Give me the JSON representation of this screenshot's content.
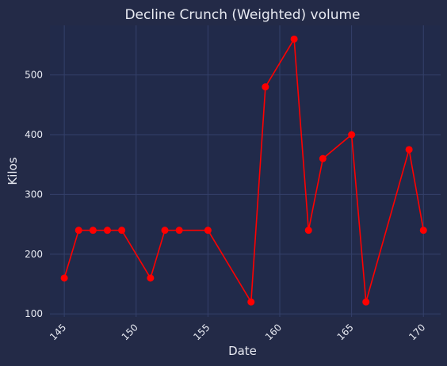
{
  "chart_data": {
    "type": "line",
    "title": "Decline Crunch (Weighted) volume",
    "xlabel": "Date",
    "ylabel": "Kilos",
    "xlim": [
      144,
      171.2
    ],
    "ylim": [
      95,
      583
    ],
    "xticks": [
      145,
      150,
      155,
      160,
      165,
      170
    ],
    "yticks": [
      100,
      200,
      300,
      400,
      500
    ],
    "grid": true,
    "series": [
      {
        "color": "#ff0000",
        "points": [
          {
            "x": 145,
            "y": 160
          },
          {
            "x": 146,
            "y": 240
          },
          {
            "x": 147,
            "y": 240
          },
          {
            "x": 148,
            "y": 240
          },
          {
            "x": 149,
            "y": 240
          },
          {
            "x": 151,
            "y": 160
          },
          {
            "x": 152,
            "y": 240
          },
          {
            "x": 153,
            "y": 240
          },
          {
            "x": 155,
            "y": 240
          },
          {
            "x": 158,
            "y": 120
          },
          {
            "x": 159,
            "y": 480
          },
          {
            "x": 161,
            "y": 560
          },
          {
            "x": 162,
            "y": 240
          },
          {
            "x": 163,
            "y": 360
          },
          {
            "x": 165,
            "y": 400
          },
          {
            "x": 166,
            "y": 120
          },
          {
            "x": 169,
            "y": 375
          },
          {
            "x": 170,
            "y": 240
          }
        ]
      }
    ]
  }
}
